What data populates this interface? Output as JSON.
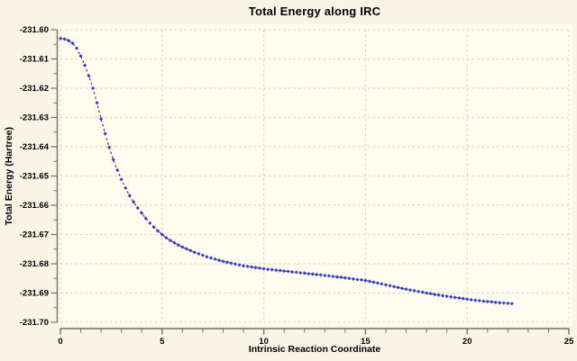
{
  "title": "Total Energy along IRC",
  "colors": {
    "outer_bg": "#f8f5e6",
    "plot_bg": "#fffdf0",
    "grid": "#d9d9ca",
    "axis": "#707070",
    "text": "#000000",
    "marker": "#3a3acd",
    "line": "#1c1c1c"
  },
  "chart_data": {
    "type": "scatter",
    "title": "Total Energy along IRC",
    "xlabel": "Intrinsic Reaction Coordinate",
    "ylabel": "Total Energy (Hartree)",
    "xlim": [
      0,
      25
    ],
    "ylim": [
      -231.7,
      -231.6
    ],
    "grid": true,
    "legend": false,
    "marker": "diamond",
    "line_style": "dashed",
    "x_major_ticks": [
      0,
      5,
      10,
      15,
      20,
      25
    ],
    "x_tick_labels": [
      "0",
      "5",
      "10",
      "15",
      "20",
      "25"
    ],
    "x_minor_step": 1,
    "y_major_step": 0.01,
    "y_minor_step": 0.005,
    "y_tick_labels": [
      "-231.60",
      "-231.61",
      "-231.62",
      "-231.63",
      "-231.64",
      "-231.65",
      "-231.66",
      "-231.67",
      "-231.68",
      "-231.69",
      "-231.70"
    ],
    "x": [
      0.0,
      0.2,
      0.4,
      0.6,
      0.8,
      1.0,
      1.2,
      1.4,
      1.6,
      1.8,
      2.0,
      2.2,
      2.4,
      2.6,
      2.8,
      3.0,
      3.2,
      3.4,
      3.6,
      3.8,
      4.0,
      4.2,
      4.4,
      4.6,
      4.8,
      5.0,
      5.2,
      5.4,
      5.6,
      5.8,
      6.0,
      6.2,
      6.4,
      6.6,
      6.8,
      7.0,
      7.2,
      7.4,
      7.6,
      7.8,
      8.0,
      8.2,
      8.4,
      8.6,
      8.8,
      9.0,
      9.2,
      9.4,
      9.6,
      9.8,
      10.0,
      10.2,
      10.4,
      10.6,
      10.8,
      11.0,
      11.2,
      11.4,
      11.6,
      11.8,
      12.0,
      12.2,
      12.4,
      12.6,
      12.8,
      13.0,
      13.2,
      13.4,
      13.6,
      13.8,
      14.0,
      14.2,
      14.4,
      14.6,
      14.8,
      15.0,
      15.2,
      15.4,
      15.6,
      15.8,
      16.0,
      16.2,
      16.4,
      16.6,
      16.8,
      17.0,
      17.2,
      17.4,
      17.6,
      17.8,
      18.0,
      18.2,
      18.4,
      18.6,
      18.8,
      19.0,
      19.2,
      19.4,
      19.6,
      19.8,
      20.0,
      20.2,
      20.4,
      20.6,
      20.8,
      21.0,
      21.2,
      21.4,
      21.6,
      21.8,
      22.0,
      22.2
    ],
    "y": [
      -231.603,
      -231.6032,
      -231.6037,
      -231.6046,
      -231.6063,
      -231.609,
      -231.6122,
      -231.6158,
      -231.62,
      -231.625,
      -231.6305,
      -231.6355,
      -231.6402,
      -231.6444,
      -231.648,
      -231.6512,
      -231.6541,
      -231.6567,
      -231.6589,
      -231.6609,
      -231.6627,
      -231.6645,
      -231.6661,
      -231.6675,
      -231.6688,
      -231.67,
      -231.6711,
      -231.672,
      -231.6728,
      -231.6736,
      -231.6743,
      -231.6749,
      -231.6755,
      -231.6761,
      -231.6766,
      -231.6771,
      -231.6776,
      -231.678,
      -231.6784,
      -231.6788,
      -231.6792,
      -231.6795,
      -231.6798,
      -231.6801,
      -231.6804,
      -231.6807,
      -231.6809,
      -231.6811,
      -231.6813,
      -231.6815,
      -231.6817,
      -231.6819,
      -231.682,
      -231.6822,
      -231.6823,
      -231.6825,
      -231.6826,
      -231.6828,
      -231.6829,
      -231.6831,
      -231.6832,
      -231.6834,
      -231.6835,
      -231.6837,
      -231.6838,
      -231.684,
      -231.6841,
      -231.6843,
      -231.6845,
      -231.6846,
      -231.6848,
      -231.685,
      -231.6852,
      -231.6854,
      -231.6855,
      -231.6857,
      -231.686,
      -231.6863,
      -231.6866,
      -231.6869,
      -231.6872,
      -231.6875,
      -231.6878,
      -231.6881,
      -231.6884,
      -231.6887,
      -231.689,
      -231.6892,
      -231.6895,
      -231.6897,
      -231.69,
      -231.6902,
      -231.6905,
      -231.6907,
      -231.6909,
      -231.6911,
      -231.6913,
      -231.6915,
      -231.6917,
      -231.6919,
      -231.6921,
      -231.6923,
      -231.6925,
      -231.6926,
      -231.6928,
      -231.6929,
      -231.693,
      -231.6932,
      -231.6933,
      -231.6934,
      -231.6935,
      -231.6936
    ]
  }
}
